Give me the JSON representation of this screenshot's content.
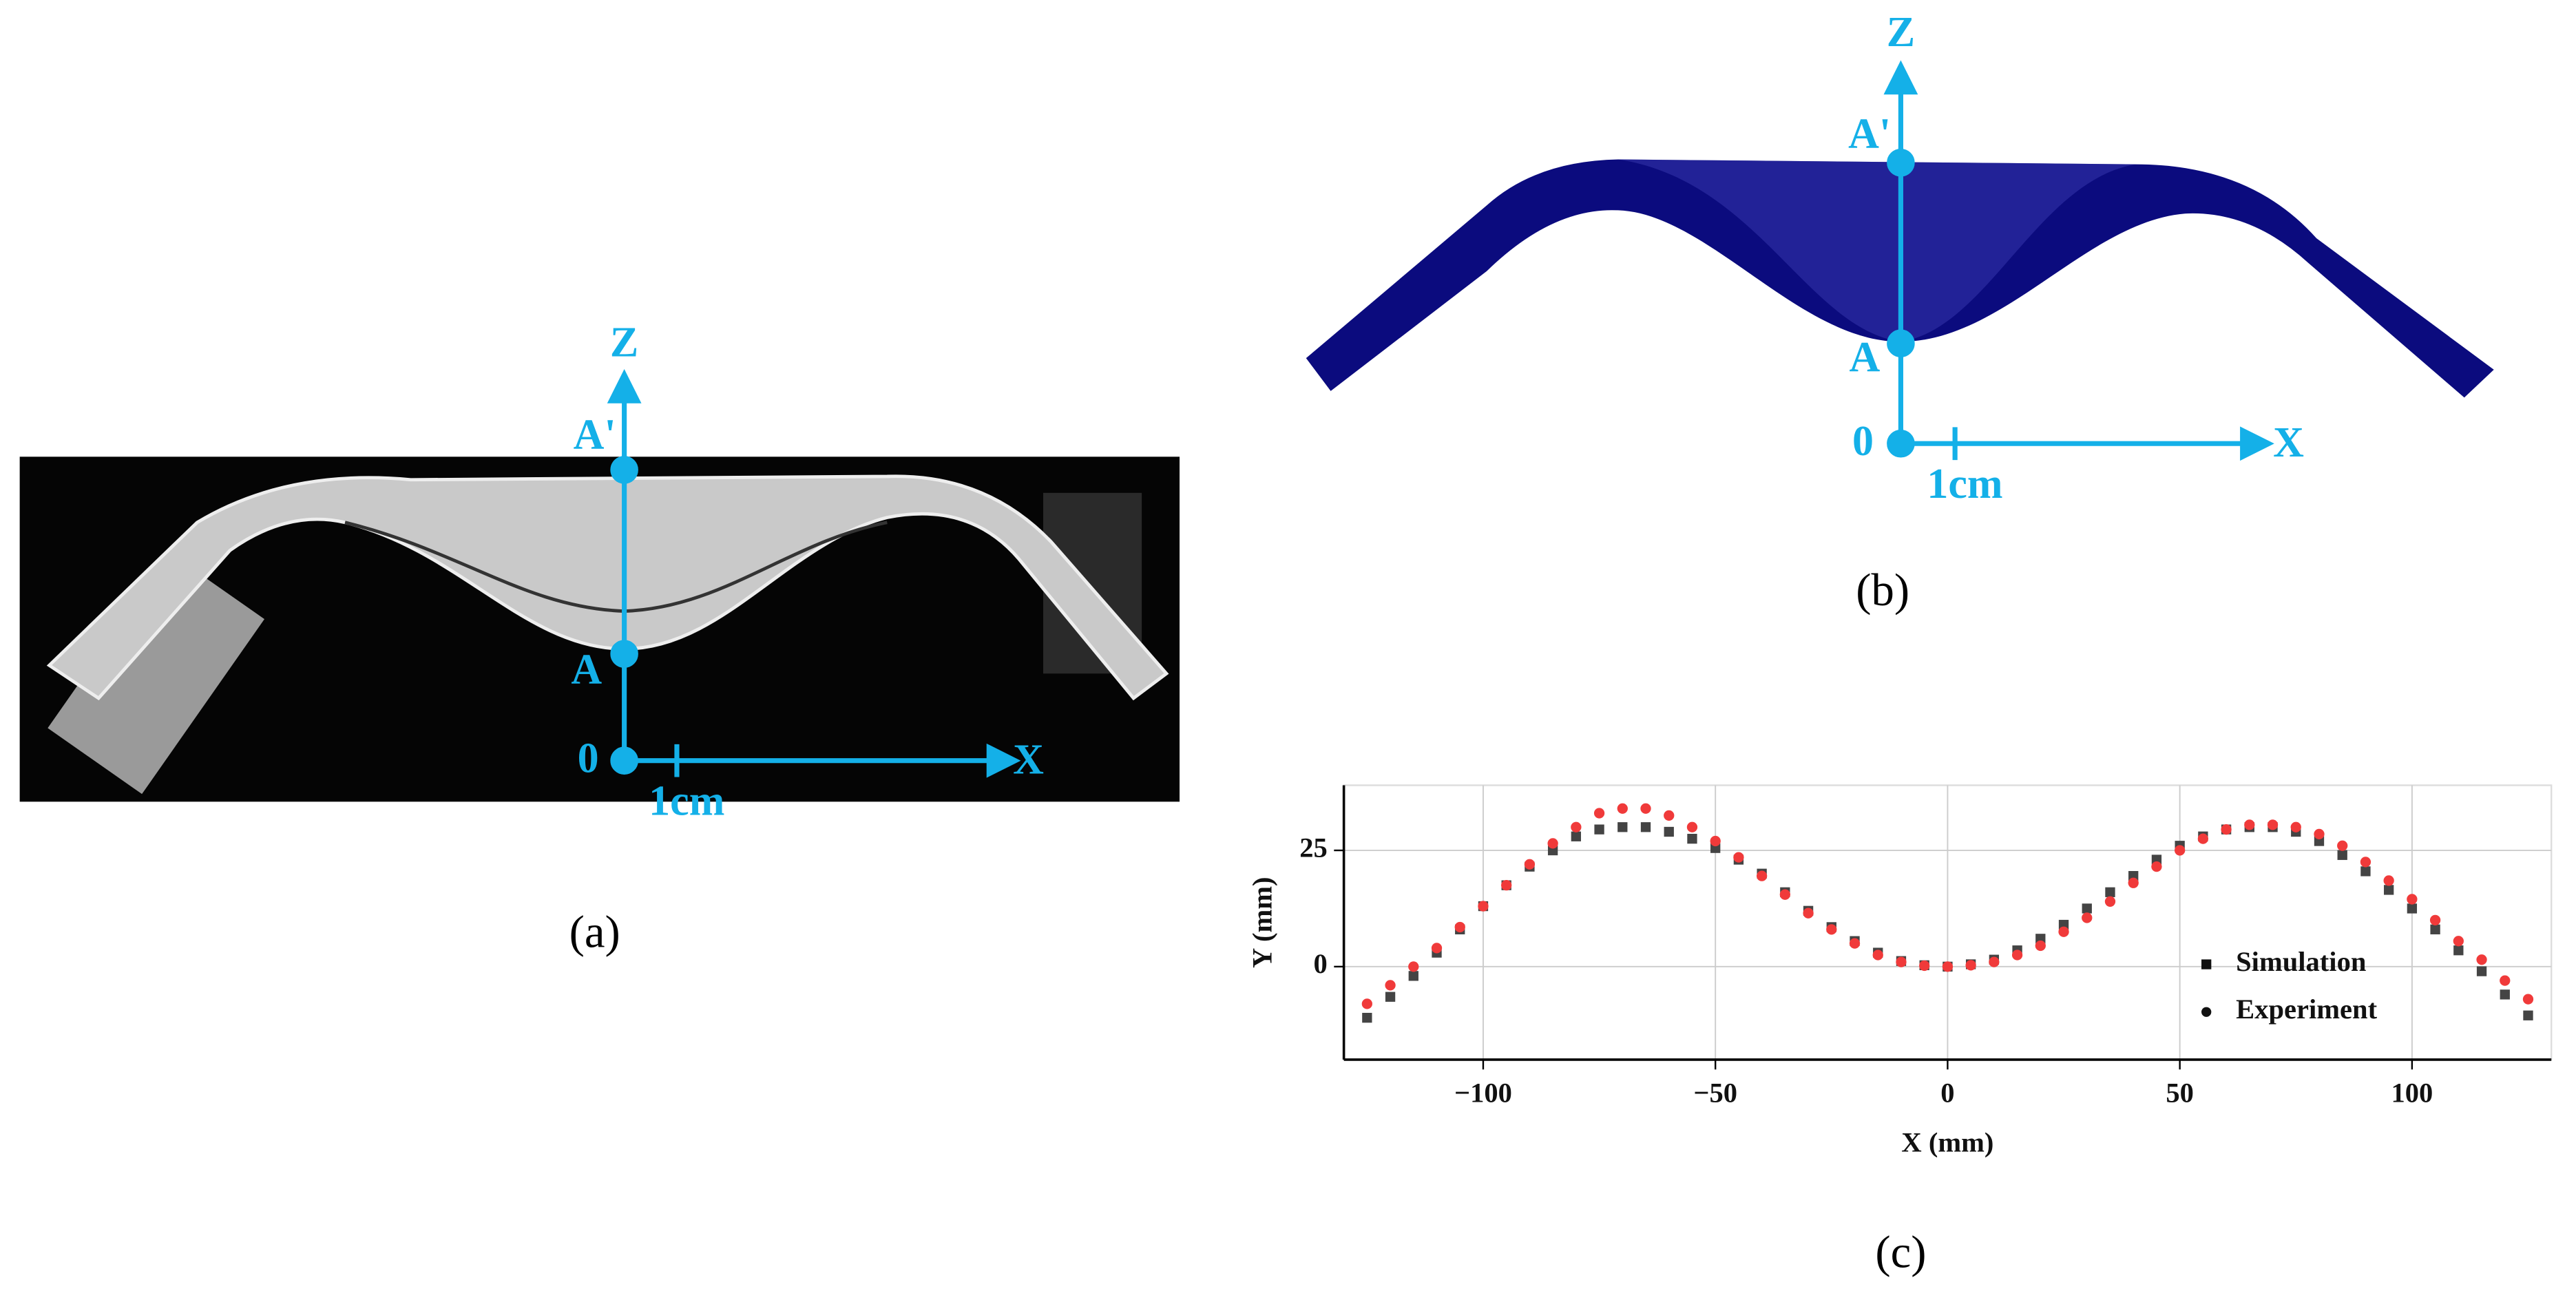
{
  "panel_a": {
    "axis_z": "Z",
    "point_top": "A'",
    "point_bottom": "A",
    "origin": "0",
    "axis_x": "X",
    "scale": "1cm",
    "caption": "(a)"
  },
  "panel_b": {
    "axis_z": "Z",
    "point_top": "A'",
    "point_bottom": "A",
    "origin": "0",
    "axis_x": "X",
    "scale": "1cm",
    "caption": "(b)"
  },
  "chart_data": {
    "type": "scatter",
    "caption": "(c)",
    "xlabel": "X (mm)",
    "ylabel": "Y (mm)",
    "x": [
      -125,
      -120,
      -115,
      -110,
      -105,
      -100,
      -95,
      -90,
      -85,
      -80,
      -75,
      -70,
      -65,
      -60,
      -55,
      -50,
      -45,
      -40,
      -35,
      -30,
      -25,
      -20,
      -15,
      -10,
      -5,
      0,
      5,
      10,
      15,
      20,
      25,
      30,
      35,
      40,
      45,
      50,
      55,
      60,
      65,
      70,
      75,
      80,
      85,
      90,
      95,
      100,
      105,
      110,
      115,
      120,
      125
    ],
    "series": [
      {
        "name": "Simulation",
        "color": "#444444",
        "marker": "square",
        "values": [
          -11,
          -6.5,
          -2,
          3,
          8,
          13,
          17.5,
          21.5,
          25,
          28,
          29.5,
          30,
          30,
          29,
          27.5,
          25.5,
          23,
          20,
          16,
          12,
          8.5,
          5.5,
          3,
          1.2,
          0.3,
          0,
          0.5,
          1.5,
          3.5,
          6,
          9,
          12.5,
          16,
          19.5,
          23,
          26,
          28,
          29.5,
          30,
          30,
          29,
          27,
          24,
          20.5,
          16.5,
          12.5,
          8,
          3.5,
          -1,
          -6,
          -10.5
        ]
      },
      {
        "name": "Experiment",
        "color": "#f03a3a",
        "marker": "circle",
        "values": [
          -8,
          -4,
          0,
          4,
          8.5,
          13,
          17.5,
          22,
          26.5,
          30,
          33,
          34,
          34,
          32.5,
          30,
          27,
          23.5,
          19.5,
          15.5,
          11.5,
          8,
          5,
          2.5,
          1,
          0.2,
          0,
          0.3,
          1,
          2.5,
          4.5,
          7.5,
          10.5,
          14,
          18,
          21.5,
          25,
          27.5,
          29.5,
          30.5,
          30.5,
          30,
          28.5,
          26,
          22.5,
          18.5,
          14.5,
          10,
          5.5,
          1.5,
          -3,
          -7
        ]
      }
    ],
    "xlim": [
      -130,
      130
    ],
    "ylim": [
      -20,
      39
    ],
    "xticks": [
      {
        "value": -100,
        "label": "−100"
      },
      {
        "value": -50,
        "label": "−50"
      },
      0,
      50,
      100
    ],
    "yticks": [
      0,
      25
    ],
    "grid": true,
    "legend": "lower right"
  }
}
